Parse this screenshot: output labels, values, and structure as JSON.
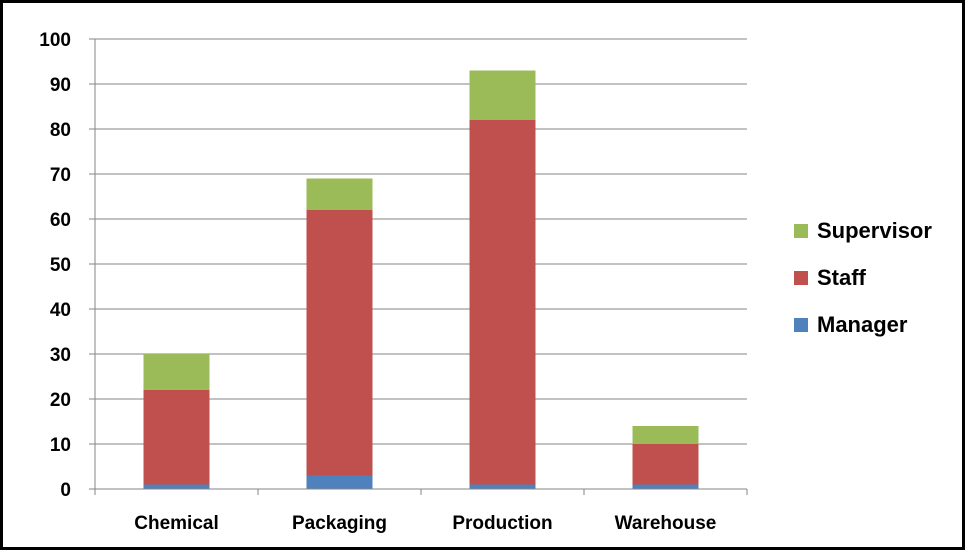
{
  "chart_data": {
    "type": "bar",
    "stacked": true,
    "categories": [
      "Chemical",
      "Packaging",
      "Production",
      "Warehouse"
    ],
    "series": [
      {
        "name": "Manager",
        "values": [
          1,
          3,
          1,
          1
        ],
        "color": "#4F81BD"
      },
      {
        "name": "Staff",
        "values": [
          21,
          59,
          81,
          9
        ],
        "color": "#C0504D"
      },
      {
        "name": "Supervisor",
        "values": [
          8,
          7,
          11,
          4
        ],
        "color": "#9BBB59"
      }
    ],
    "title": "",
    "xlabel": "",
    "ylabel": "",
    "ylim": [
      0,
      100
    ],
    "yticks": [
      0,
      10,
      20,
      30,
      40,
      50,
      60,
      70,
      80,
      90,
      100
    ],
    "grid": true,
    "legend_position": "right"
  }
}
